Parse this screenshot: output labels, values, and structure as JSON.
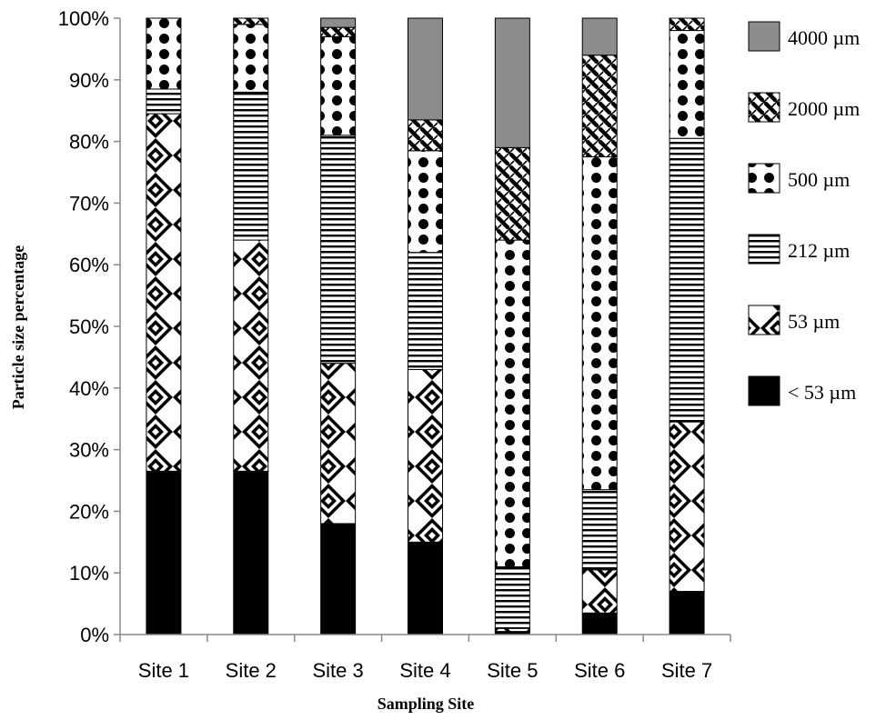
{
  "chart_data": {
    "type": "bar",
    "stacked": true,
    "percent_stacked": true,
    "categories": [
      "Site 1",
      "Site 2",
      "Site 3",
      "Site 4",
      "Site 5",
      "Site 6",
      "Site 7"
    ],
    "series": [
      {
        "name": "< 53 µm",
        "pattern": "solid-black",
        "values": [
          26.5,
          26.5,
          18,
          15,
          0.5,
          3.5,
          7
        ]
      },
      {
        "name": "53 µm",
        "pattern": "diamond",
        "values": [
          58,
          37.5,
          26,
          28,
          0.5,
          7,
          27.5
        ]
      },
      {
        "name": "212 µm",
        "pattern": "horizontal-stripes",
        "values": [
          4,
          24,
          37,
          19,
          10,
          13,
          46
        ]
      },
      {
        "name": "500 µm",
        "pattern": "dots",
        "values": [
          11.5,
          11,
          16,
          16.5,
          53,
          54,
          17.5
        ]
      },
      {
        "name": "2000 µm",
        "pattern": "crosshatch",
        "values": [
          0,
          1,
          1.5,
          5,
          15,
          16.5,
          2
        ]
      },
      {
        "name": "4000 µm",
        "pattern": "solid-gray",
        "values": [
          0,
          0,
          1.5,
          16.5,
          21,
          6,
          0
        ]
      }
    ],
    "yticks": [
      "0%",
      "10%",
      "20%",
      "30%",
      "40%",
      "50%",
      "60%",
      "70%",
      "80%",
      "90%",
      "100%"
    ],
    "ylim": [
      0,
      100
    ],
    "ylabel": "Particle size percentage",
    "xlabel": "Sampling Site",
    "legend_position": "right",
    "grid": false
  }
}
